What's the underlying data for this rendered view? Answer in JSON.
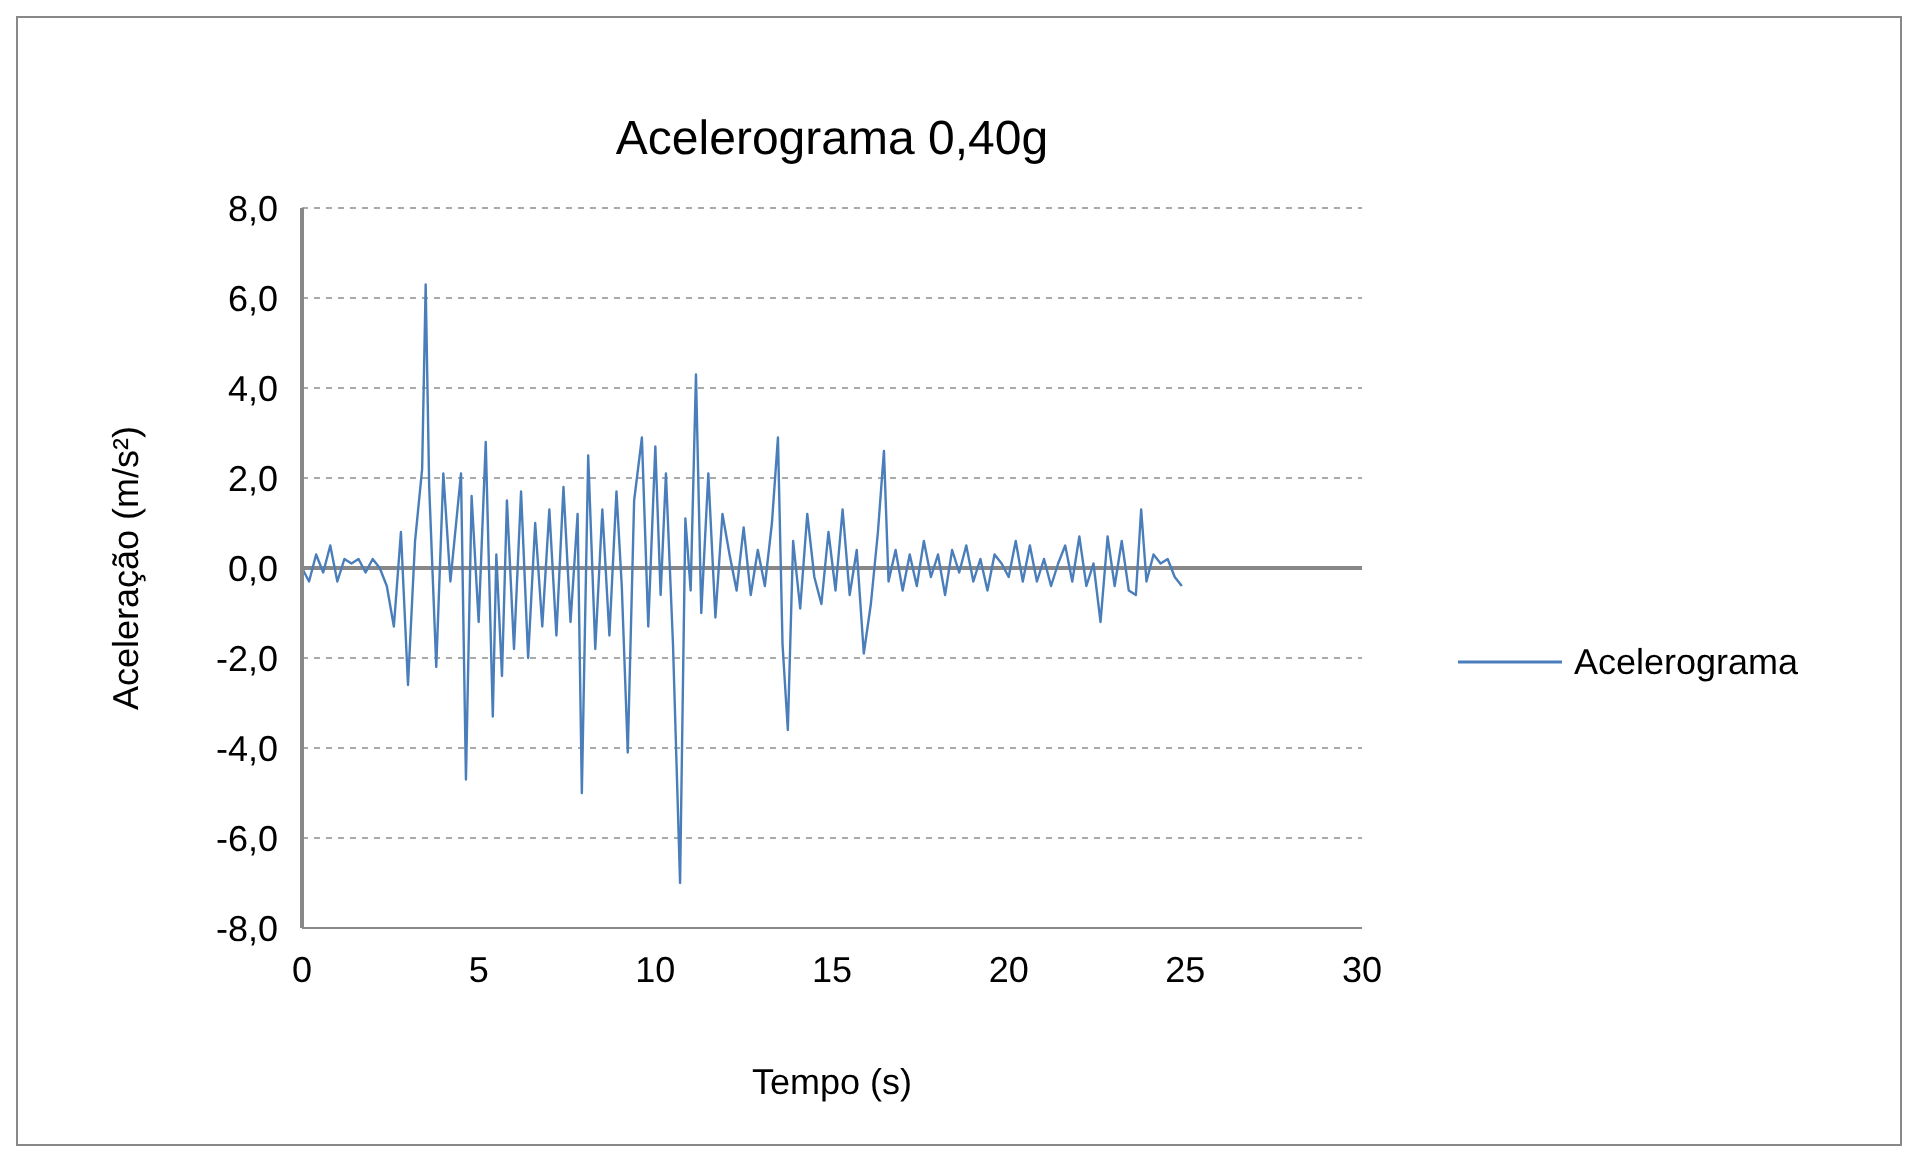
{
  "chart_data": {
    "type": "line",
    "title": "Acelerograma 0,40g",
    "xlabel": "Tempo (s)",
    "ylabel": "Aceleração (m/s²)",
    "x": [
      0,
      0.2,
      0.4,
      0.6,
      0.8,
      1.0,
      1.2,
      1.4,
      1.6,
      1.8,
      2.0,
      2.2,
      2.4,
      2.6,
      2.8,
      3.0,
      3.2,
      3.4,
      3.5,
      3.6,
      3.8,
      4.0,
      4.2,
      4.4,
      4.5,
      4.64,
      4.8,
      5.0,
      5.2,
      5.4,
      5.5,
      5.66,
      5.8,
      6.0,
      6.2,
      6.4,
      6.6,
      6.8,
      7.0,
      7.2,
      7.4,
      7.6,
      7.8,
      7.92,
      8.1,
      8.3,
      8.5,
      8.7,
      8.9,
      9.05,
      9.22,
      9.4,
      9.62,
      9.8,
      10.0,
      10.15,
      10.3,
      10.5,
      10.7,
      10.85,
      11.0,
      11.15,
      11.3,
      11.5,
      11.7,
      11.9,
      12.1,
      12.3,
      12.5,
      12.7,
      12.9,
      13.1,
      13.3,
      13.47,
      13.6,
      13.75,
      13.9,
      14.1,
      14.3,
      14.5,
      14.7,
      14.9,
      15.1,
      15.3,
      15.5,
      15.7,
      15.9,
      16.1,
      16.3,
      16.47,
      16.6,
      16.8,
      17.0,
      17.2,
      17.4,
      17.6,
      17.8,
      18.0,
      18.2,
      18.4,
      18.6,
      18.8,
      19.0,
      19.2,
      19.4,
      19.6,
      19.8,
      20.0,
      20.2,
      20.4,
      20.6,
      20.8,
      21.0,
      21.2,
      21.4,
      21.6,
      21.8,
      22.0,
      22.2,
      22.4,
      22.6,
      22.8,
      23.0,
      23.2,
      23.4,
      23.6,
      23.75,
      23.9,
      24.1,
      24.3,
      24.5,
      24.7,
      24.9
    ],
    "series": [
      {
        "name": "Acelerograma",
        "color": "#4a7ebb",
        "values": [
          0,
          -0.3,
          0.3,
          -0.1,
          0.5,
          -0.3,
          0.2,
          0.1,
          0.2,
          -0.1,
          0.2,
          0,
          -0.4,
          -1.3,
          0.8,
          -2.6,
          0.6,
          2.2,
          6.3,
          1.8,
          -2.2,
          2.1,
          -0.3,
          1.3,
          2.1,
          -4.7,
          1.6,
          -1.2,
          2.8,
          -3.3,
          0.3,
          -2.4,
          1.5,
          -1.8,
          1.7,
          -2.0,
          1.0,
          -1.3,
          1.3,
          -1.5,
          1.8,
          -1.2,
          1.2,
          -5.0,
          2.5,
          -1.8,
          1.3,
          -1.5,
          1.7,
          -0.4,
          -4.1,
          1.5,
          2.9,
          -1.3,
          2.7,
          -0.6,
          2.1,
          -1.7,
          -7.0,
          1.1,
          -0.5,
          4.3,
          -1.0,
          2.1,
          -1.1,
          1.2,
          0.3,
          -0.5,
          0.9,
          -0.6,
          0.4,
          -0.4,
          1.0,
          2.9,
          -1.7,
          -3.6,
          0.6,
          -0.9,
          1.2,
          -0.2,
          -0.8,
          0.8,
          -0.5,
          1.3,
          -0.6,
          0.4,
          -1.9,
          -0.8,
          0.8,
          2.6,
          -0.3,
          0.4,
          -0.5,
          0.3,
          -0.4,
          0.6,
          -0.2,
          0.3,
          -0.6,
          0.4,
          -0.1,
          0.5,
          -0.3,
          0.2,
          -0.5,
          0.3,
          0.1,
          -0.2,
          0.6,
          -0.3,
          0.5,
          -0.3,
          0.2,
          -0.4,
          0.1,
          0.5,
          -0.3,
          0.7,
          -0.4,
          0.1,
          -1.2,
          0.7,
          -0.4,
          0.6,
          -0.5,
          -0.6,
          1.3,
          -0.3,
          0.3,
          0.1,
          0.2,
          -0.2,
          -0.4
        ]
      }
    ],
    "xlim": [
      0,
      30
    ],
    "xticks": [
      0,
      5,
      10,
      15,
      20,
      25,
      30
    ],
    "ylim": [
      -8,
      8
    ],
    "yticks": [
      {
        "value": -8,
        "label": "-8,0"
      },
      {
        "value": -6,
        "label": "-6,0"
      },
      {
        "value": -4,
        "label": "-4,0"
      },
      {
        "value": -2,
        "label": "-2,0"
      },
      {
        "value": 0,
        "label": "0,0"
      },
      {
        "value": 2,
        "label": "2,0"
      },
      {
        "value": 4,
        "label": "4,0"
      },
      {
        "value": 6,
        "label": "6,0"
      },
      {
        "value": 8,
        "label": "8,0"
      }
    ],
    "grid": "y",
    "legend": "right",
    "marker": "none",
    "line_style": "solid"
  }
}
